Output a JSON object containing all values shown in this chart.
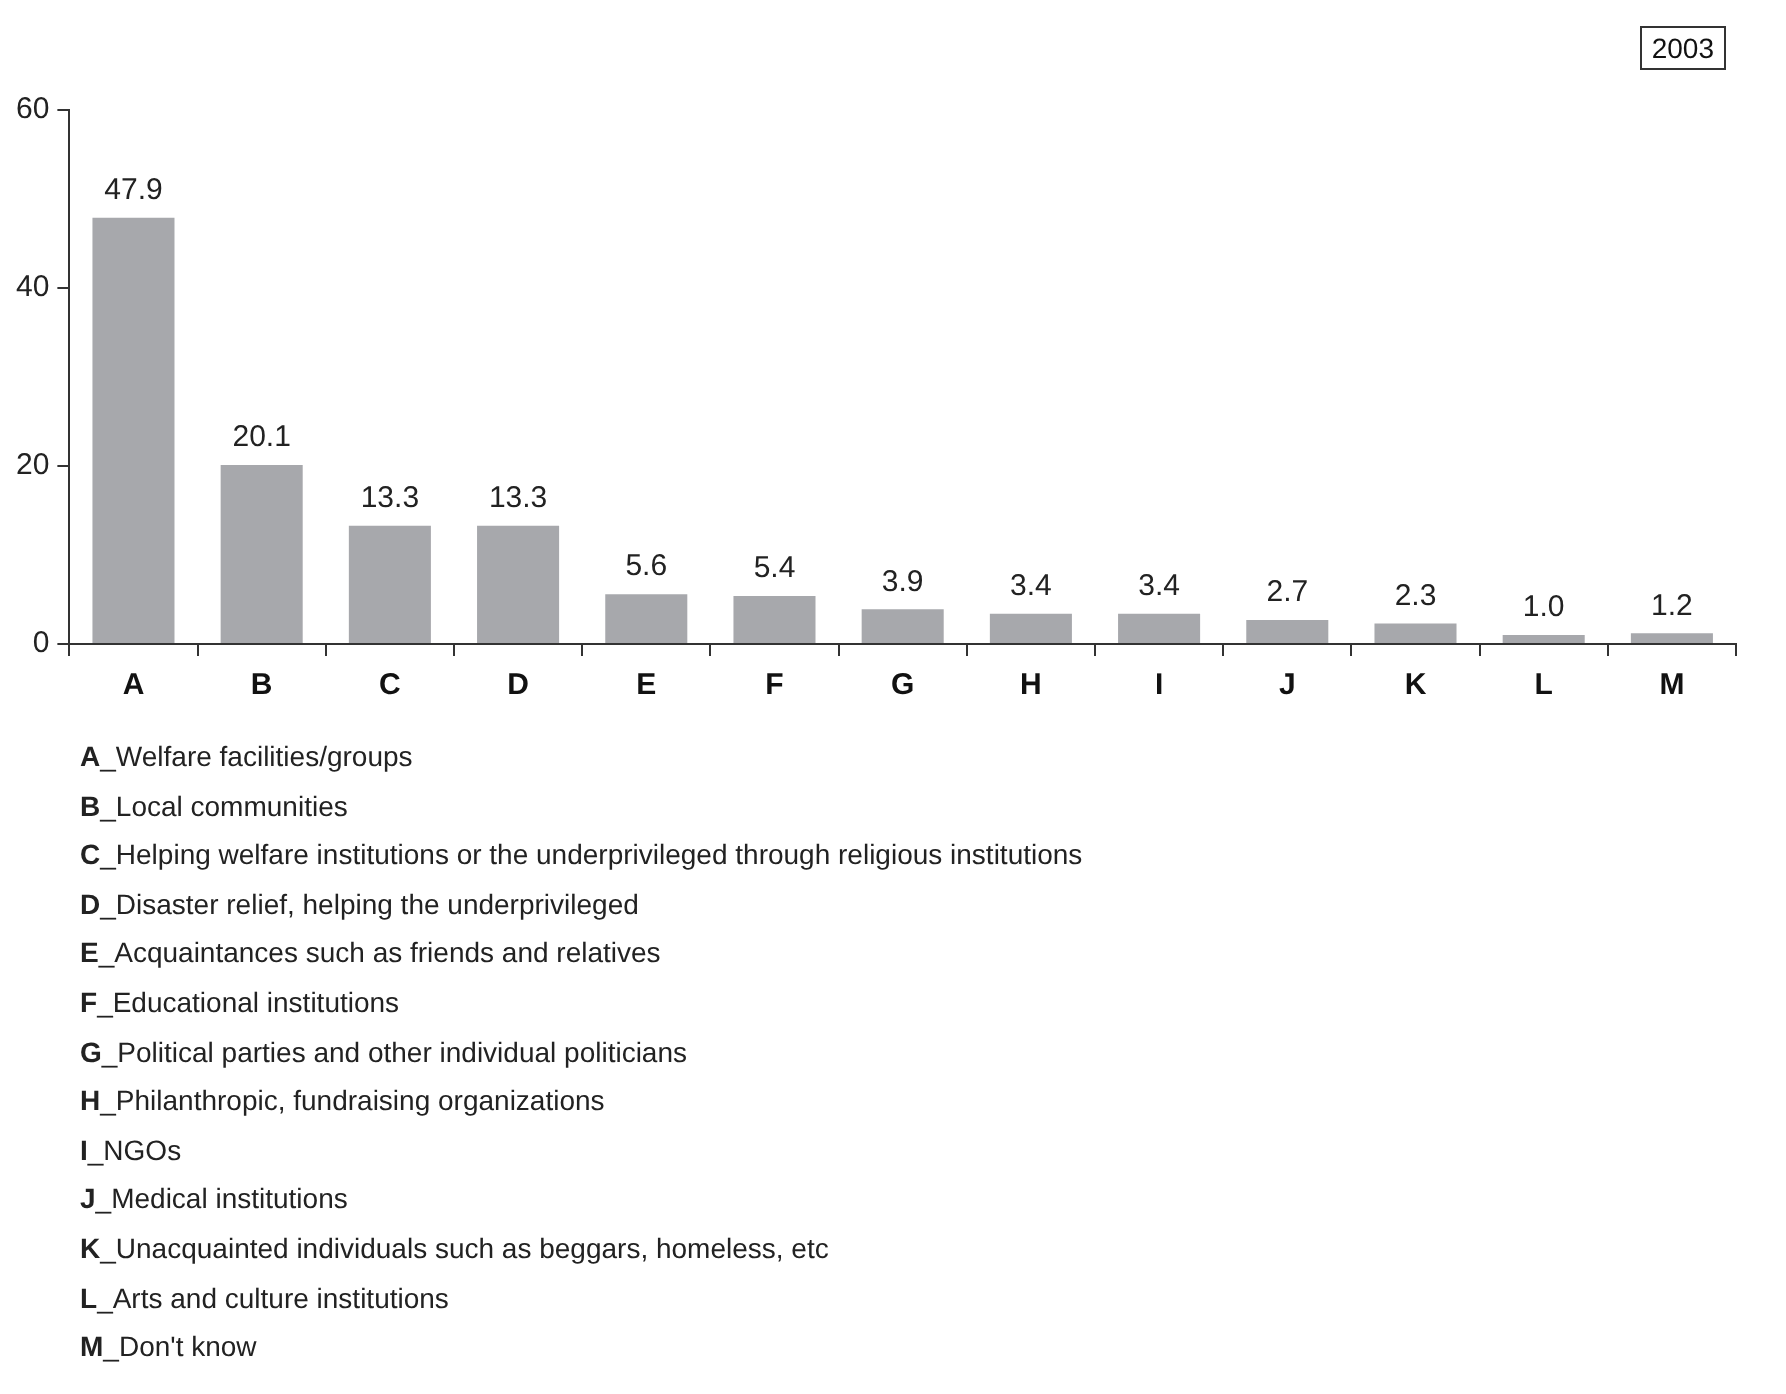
{
  "chart_data": {
    "type": "bar",
    "title": "2003",
    "categories": [
      "A",
      "B",
      "C",
      "D",
      "E",
      "F",
      "G",
      "H",
      "I",
      "J",
      "K",
      "L",
      "M"
    ],
    "values": [
      47.9,
      20.1,
      13.3,
      13.3,
      5.6,
      5.4,
      3.9,
      3.4,
      3.4,
      2.7,
      2.3,
      1.0,
      1.2
    ],
    "value_labels": [
      "47.9",
      "20.1",
      "13.3",
      "13.3",
      "5.6",
      "5.4",
      "3.9",
      "3.4",
      "3.4",
      "2.7",
      "2.3",
      "1.0",
      "1.2"
    ],
    "color": "#a7a8ac",
    "ylim": [
      0,
      60
    ],
    "yticks": [
      0,
      20,
      40,
      60
    ],
    "grid": false,
    "legend": false,
    "annotations": [
      "A_Welfare facilities/groups",
      "B_Local communities",
      "C_Helping welfare institutions or the underprivileged through religious institutions",
      "D_Disaster relief, helping the underprivileged",
      "E_Acquaintances such as friends and relatives",
      "F_Educational institutions",
      "G_Political parties and other individual politicians",
      "H_Philanthropic, fundraising organizations",
      "I_NGOs",
      "J_Medical institutions",
      "K_Unacquainted individuals such as beggars, homeless, etc",
      "L_Arts and culture institutions",
      "M_Don't know"
    ]
  }
}
